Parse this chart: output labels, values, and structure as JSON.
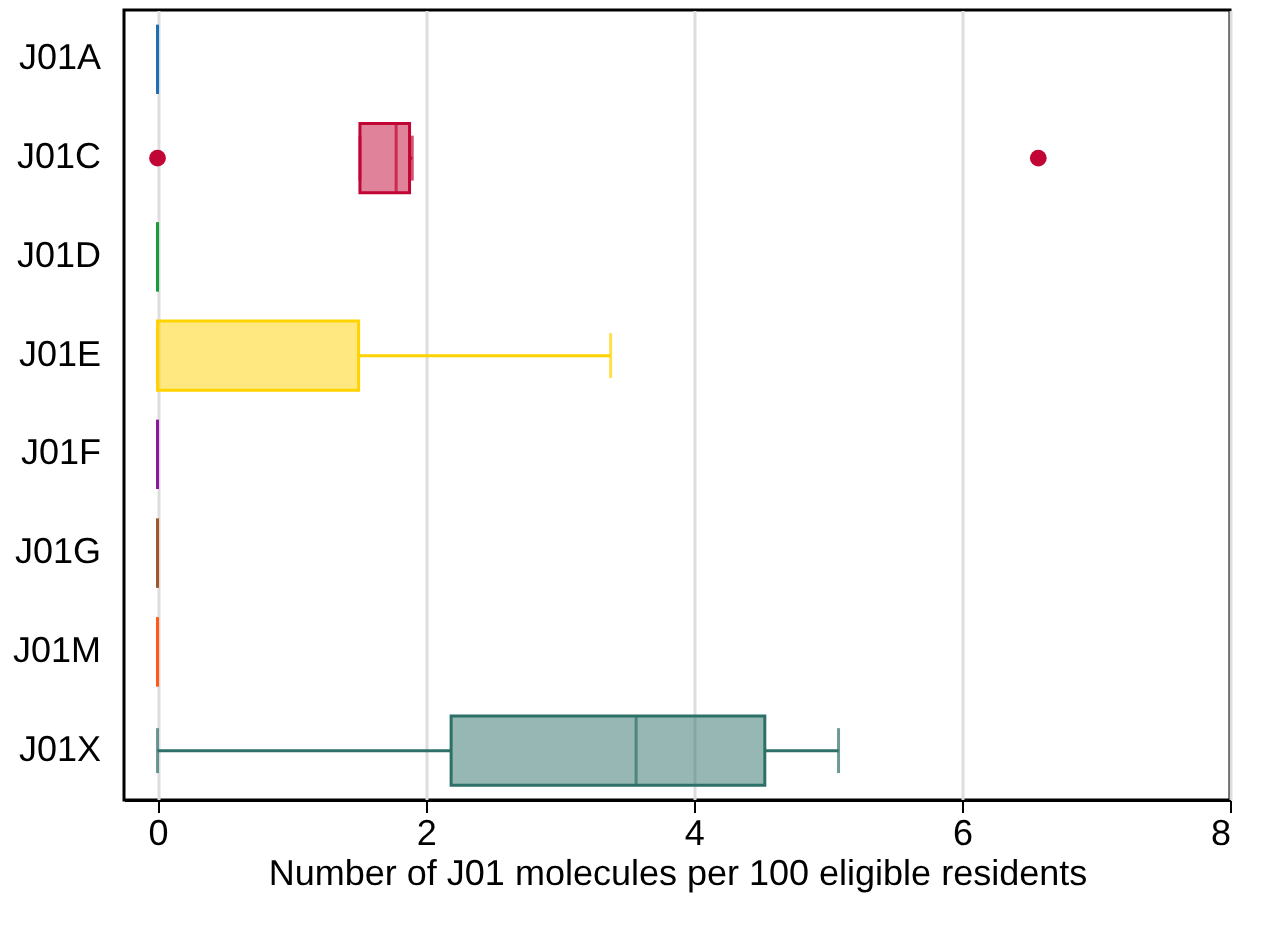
{
  "chart_data": {
    "type": "box",
    "orientation": "horizontal",
    "xlabel": "Number of J01 molecules per 100 eligible residents",
    "categories": [
      "J01A",
      "J01C",
      "J01D",
      "J01E",
      "J01F",
      "J01G",
      "J01M",
      "J01X"
    ],
    "colors": [
      "#1f6fb2",
      "#c10534",
      "#1a9b3a",
      "#ffd200",
      "#8b1a9b",
      "#a0562d",
      "#ff5a1a",
      "#2d7068"
    ],
    "boxes": [
      {
        "low": 0,
        "q1": 0,
        "median": 0,
        "q3": 0,
        "high": 0
      },
      {
        "low": 1.51,
        "q1": 1.51,
        "median": 1.78,
        "q3": 1.88,
        "high": 1.9,
        "outliers": [
          0,
          6.57
        ]
      },
      {
        "low": 0,
        "q1": 0,
        "median": 0,
        "q3": 0,
        "high": 0
      },
      {
        "low": 0,
        "q1": 0,
        "median": 0,
        "q3": 1.5,
        "high": 3.38
      },
      {
        "low": 0,
        "q1": 0,
        "median": 0,
        "q3": 0,
        "high": 0
      },
      {
        "low": 0,
        "q1": 0,
        "median": 0,
        "q3": 0,
        "high": 0
      },
      {
        "low": 0,
        "q1": 0,
        "median": 0,
        "q3": 0,
        "high": 0
      },
      {
        "low": 0,
        "q1": 2.19,
        "median": 3.57,
        "q3": 4.53,
        "high": 5.08
      }
    ],
    "xlim": [
      -0.25,
      8
    ],
    "xticks": [
      0,
      2,
      4,
      6,
      8
    ],
    "grid": "x",
    "legend": false
  }
}
